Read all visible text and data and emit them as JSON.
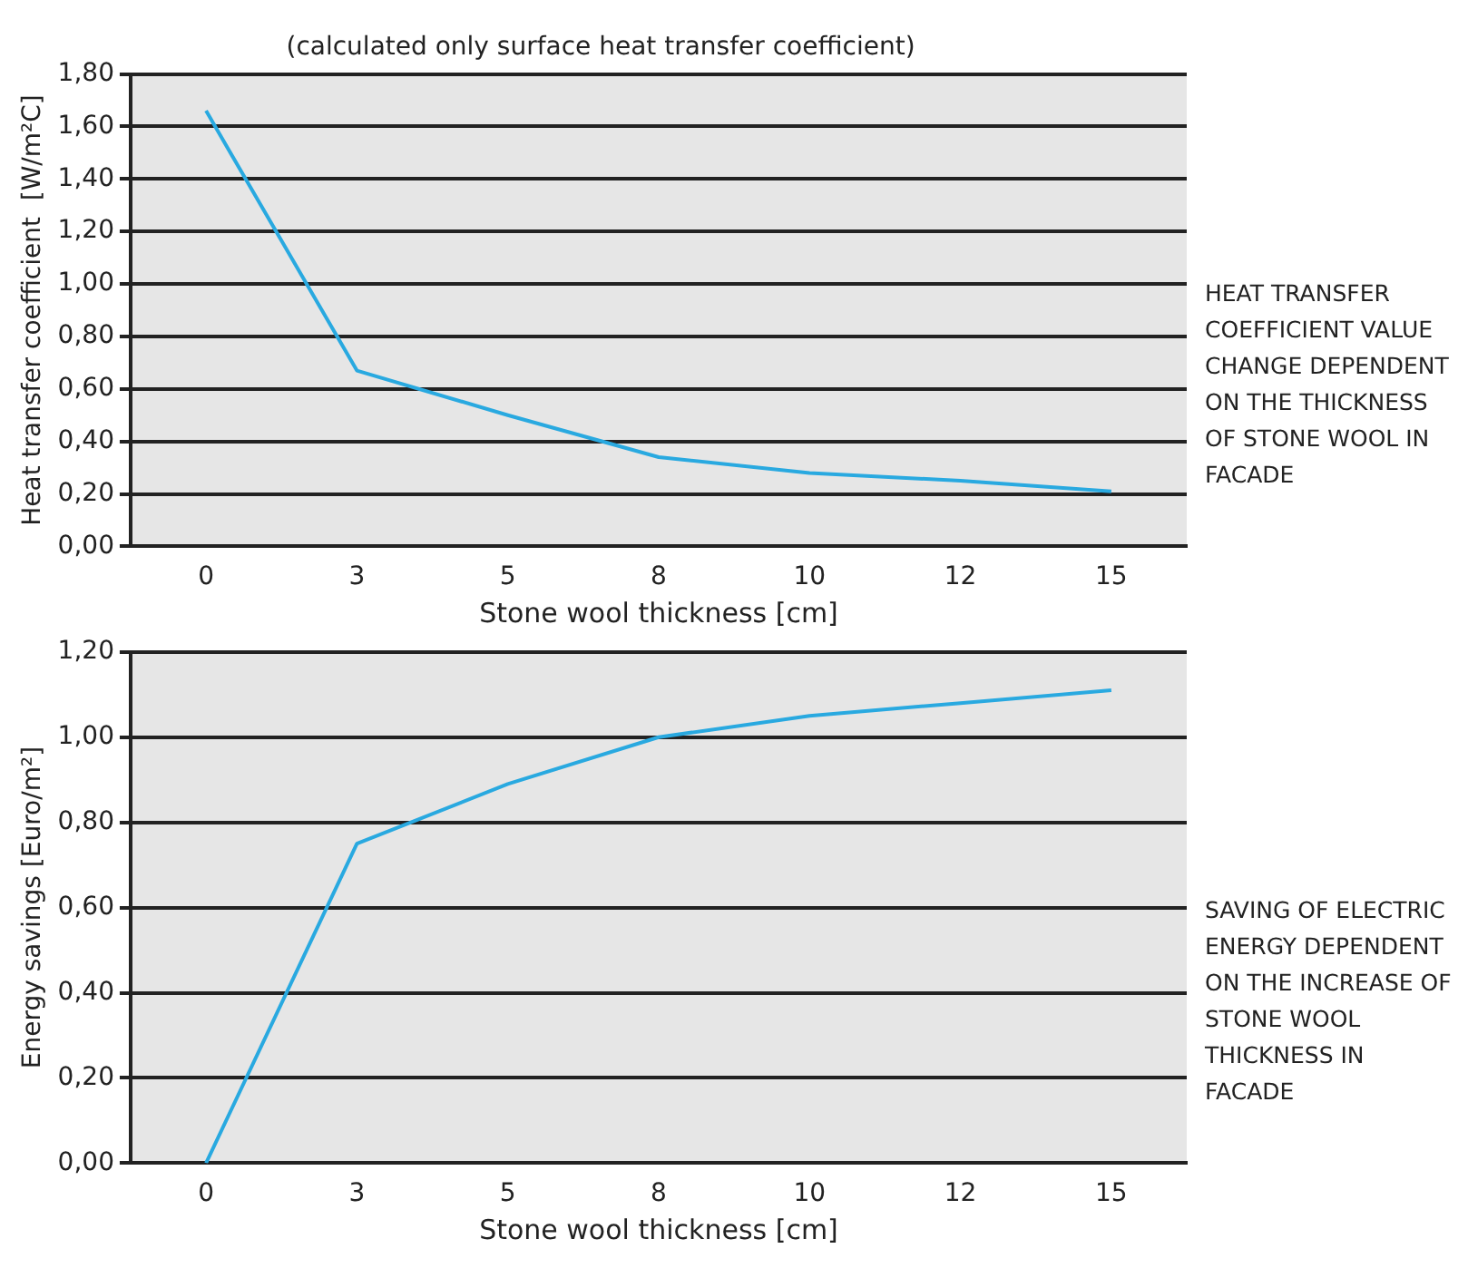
{
  "chart_data": [
    {
      "type": "line",
      "subtitle": "(calculated only surface heat transfer coefficient)",
      "xlabel": "Stone wool thickness [cm]",
      "ylabel": "Heat transfer coefficient  [W/m²C]",
      "categories": [
        "0",
        "3",
        "5",
        "8",
        "10",
        "12",
        "15"
      ],
      "series": [
        {
          "color": "#29a9e0",
          "values": [
            1.66,
            0.67,
            0.5,
            0.34,
            0.28,
            0.25,
            0.21
          ]
        }
      ],
      "ylim": [
        0,
        1.8
      ],
      "yticks": [
        {
          "value": 0,
          "label": "0,00"
        },
        {
          "value": 0.2,
          "label": "0,20"
        },
        {
          "value": 0.4,
          "label": "0,40"
        },
        {
          "value": 0.6,
          "label": "0,60"
        },
        {
          "value": 0.8,
          "label": "0,80"
        },
        {
          "value": 1,
          "label": "1,00"
        },
        {
          "value": 1.2,
          "label": "1,20"
        },
        {
          "value": 1.4,
          "label": "1,40"
        },
        {
          "value": 1.6,
          "label": "1,60"
        },
        {
          "value": 1.8,
          "label": "1,80"
        }
      ],
      "grid": "y",
      "marker": "none",
      "line_style": "solid",
      "annotations": [
        "HEAT TRANSFER COEFFICIENT VALUE CHANGE DEPENDENT ON THE THICKNESS OF STONE WOOL IN FACADE"
      ]
    },
    {
      "type": "line",
      "xlabel": "Stone wool thickness [cm]",
      "ylabel": "Energy savings [Euro/m²]",
      "categories": [
        "0",
        "3",
        "5",
        "8",
        "10",
        "12",
        "15"
      ],
      "series": [
        {
          "color": "#29a9e0",
          "values": [
            0,
            0.75,
            0.89,
            1.0,
            1.05,
            1.08,
            1.11
          ]
        }
      ],
      "ylim": [
        0,
        1.2
      ],
      "yticks": [
        {
          "value": 0,
          "label": "0,00"
        },
        {
          "value": 0.2,
          "label": "0,20"
        },
        {
          "value": 0.4,
          "label": "0,40"
        },
        {
          "value": 0.6,
          "label": "0,60"
        },
        {
          "value": 0.8,
          "label": "0,80"
        },
        {
          "value": 1,
          "label": "1,00"
        },
        {
          "value": 1.2,
          "label": "1,20"
        }
      ],
      "grid": "y",
      "marker": "none",
      "line_style": "solid",
      "annotations": [
        "SAVING OF ELECTRIC ENERGY DEPENDENT ON THE INCREASE OF STONE WOOL THICKNESS IN FACADE"
      ]
    }
  ]
}
